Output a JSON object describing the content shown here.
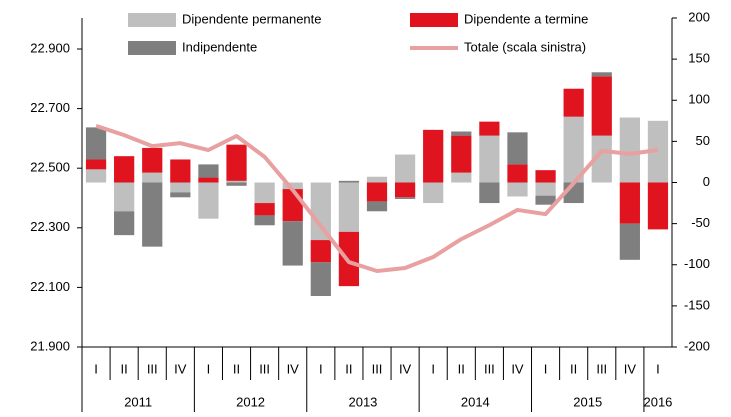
{
  "chart_data": {
    "type": "bar",
    "categories": [
      "I",
      "II",
      "III",
      "IV",
      "I",
      "II",
      "III",
      "IV",
      "I",
      "II",
      "III",
      "IV",
      "I",
      "II",
      "III",
      "IV",
      "I",
      "II",
      "III",
      "IV",
      "I"
    ],
    "year_labels": [
      "2011",
      "2012",
      "2013",
      "2014",
      "2015",
      "2016"
    ],
    "series": [
      {
        "name": "Dipendente permanente",
        "color": "#bfbfbf",
        "axis": "y2",
        "values": [
          16,
          -35,
          12,
          -12,
          -44,
          2,
          -25,
          -8,
          -70,
          -60,
          7,
          34,
          -25,
          12,
          57,
          -17,
          -16,
          80,
          57,
          79,
          75
        ]
      },
      {
        "name": "Dipendente a termine",
        "color": "#e0141e",
        "axis": "y2",
        "values": [
          12,
          32,
          30,
          28,
          6,
          44,
          -15,
          -39,
          -27,
          -66,
          -23,
          -18,
          64,
          45,
          17,
          22,
          15,
          34,
          72,
          -50,
          -57
        ]
      },
      {
        "name": "Indipendente",
        "color": "#7f7f7f",
        "axis": "y2",
        "values": [
          39,
          -29,
          -78,
          -6,
          16,
          -4,
          -12,
          -54,
          -41,
          2,
          -12,
          -2,
          0,
          5,
          -25,
          39,
          -11,
          -25,
          5,
          -44,
          0
        ]
      },
      {
        "name": "Totale (scala sinistra)",
        "color": "#e8a0a0",
        "type": "line",
        "values": [
          22642,
          22611,
          22574,
          22584,
          22561,
          22608,
          22538,
          22427,
          22306,
          22185,
          22155,
          22165,
          22202,
          22262,
          22309,
          22360,
          22346,
          22450,
          22558,
          22548,
          22561
        ]
      }
    ],
    "ylim": [
      21900,
      23004
    ],
    "yticks": [
      {
        "value": 21900,
        "label": "21.900"
      },
      {
        "value": 22100,
        "label": "22.100"
      },
      {
        "value": 22300,
        "label": "22.300"
      },
      {
        "value": 22500,
        "label": "22.500"
      },
      {
        "value": 22700,
        "label": "22.700"
      },
      {
        "value": 22900,
        "label": "22.900"
      }
    ],
    "y2lim": [
      -200,
      200
    ],
    "y2ticks": [
      -200,
      -150,
      -100,
      -50,
      0,
      50,
      100,
      150,
      200
    ]
  }
}
